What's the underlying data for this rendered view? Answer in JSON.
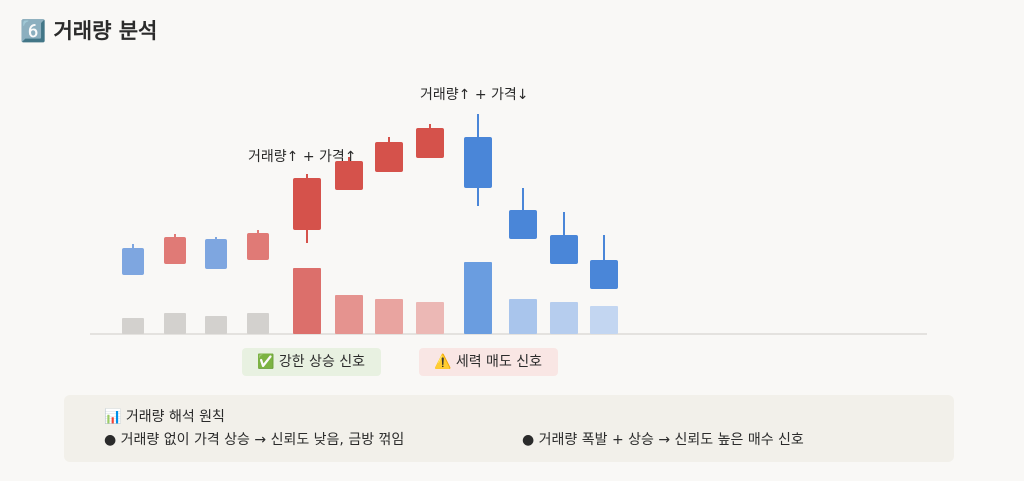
{
  "chart_data": {
    "type": "candlestick",
    "title": "6️⃣ 거래량 분석",
    "open": [
      52,
      36,
      61,
      40,
      70,
      110,
      128,
      142,
      163,
      90,
      65,
      40
    ],
    "high": [
      56,
      66,
      63,
      70,
      126,
      143,
      163,
      176,
      186,
      112,
      88,
      65
    ],
    "low": [
      25,
      36,
      31,
      40,
      57,
      110,
      128,
      142,
      94,
      61,
      36,
      11
    ],
    "close": [
      25,
      63,
      31,
      67,
      122,
      139,
      158,
      172,
      112,
      61,
      36,
      11
    ],
    "candle_colors": [
      "#7ea6e0",
      "#e07a76",
      "#7ea6e0",
      "#e07a76",
      "#d5524b",
      "#d5524b",
      "#d5524b",
      "#d5524b",
      "#4a86d8",
      "#4a86d8",
      "#4a86d8",
      "#4a86d8"
    ],
    "volume": [
      16,
      21,
      18,
      21,
      66,
      39,
      35,
      32,
      72,
      35,
      32,
      28
    ],
    "volume_colors": [
      "#d3d1ce",
      "#d3d1ce",
      "#d3d1ce",
      "#d3d1ce",
      "#dc6f6b",
      "#e5938f",
      "#e9a4a0",
      "#ecb8b5",
      "#6a9de0",
      "#a9c5ec",
      "#b6cdee",
      "#c3d6f1"
    ],
    "annotations": [
      "거래량↑ + 가격↑",
      "거래량↑ + 가격↓"
    ],
    "signals": [
      "✅ 강한 상승 신호",
      "⚠️ 세력 매도 신호"
    ],
    "notes": {
      "heading": "📊 거래량 해석 원칙",
      "items": [
        "● 거래량 없이 가격 상승 → 신뢰도 낮음, 금방 꺾임",
        "● 거래량 폭발 + 상승 → 신뢰도 높은 매수 신호"
      ]
    }
  }
}
